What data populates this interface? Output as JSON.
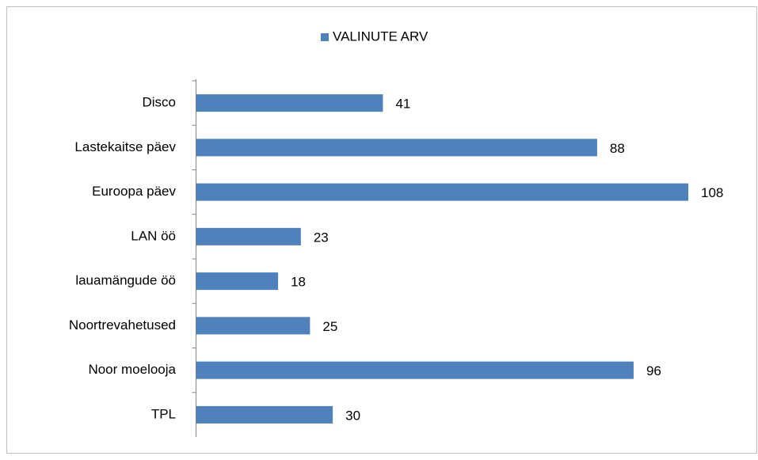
{
  "chart_data": {
    "type": "bar",
    "orientation": "horizontal",
    "categories": [
      "Disco",
      "Lastekaitse päev",
      "Euroopa päev",
      "LAN öö",
      "lauamängude öö",
      "Noortrevahetused",
      "Noor moelooja",
      "TPL"
    ],
    "series": [
      {
        "name": "VALINUTE ARV",
        "color": "#4f81bd",
        "values": [
          41,
          88,
          108,
          23,
          18,
          25,
          96,
          30
        ]
      }
    ],
    "legend": "top"
  }
}
